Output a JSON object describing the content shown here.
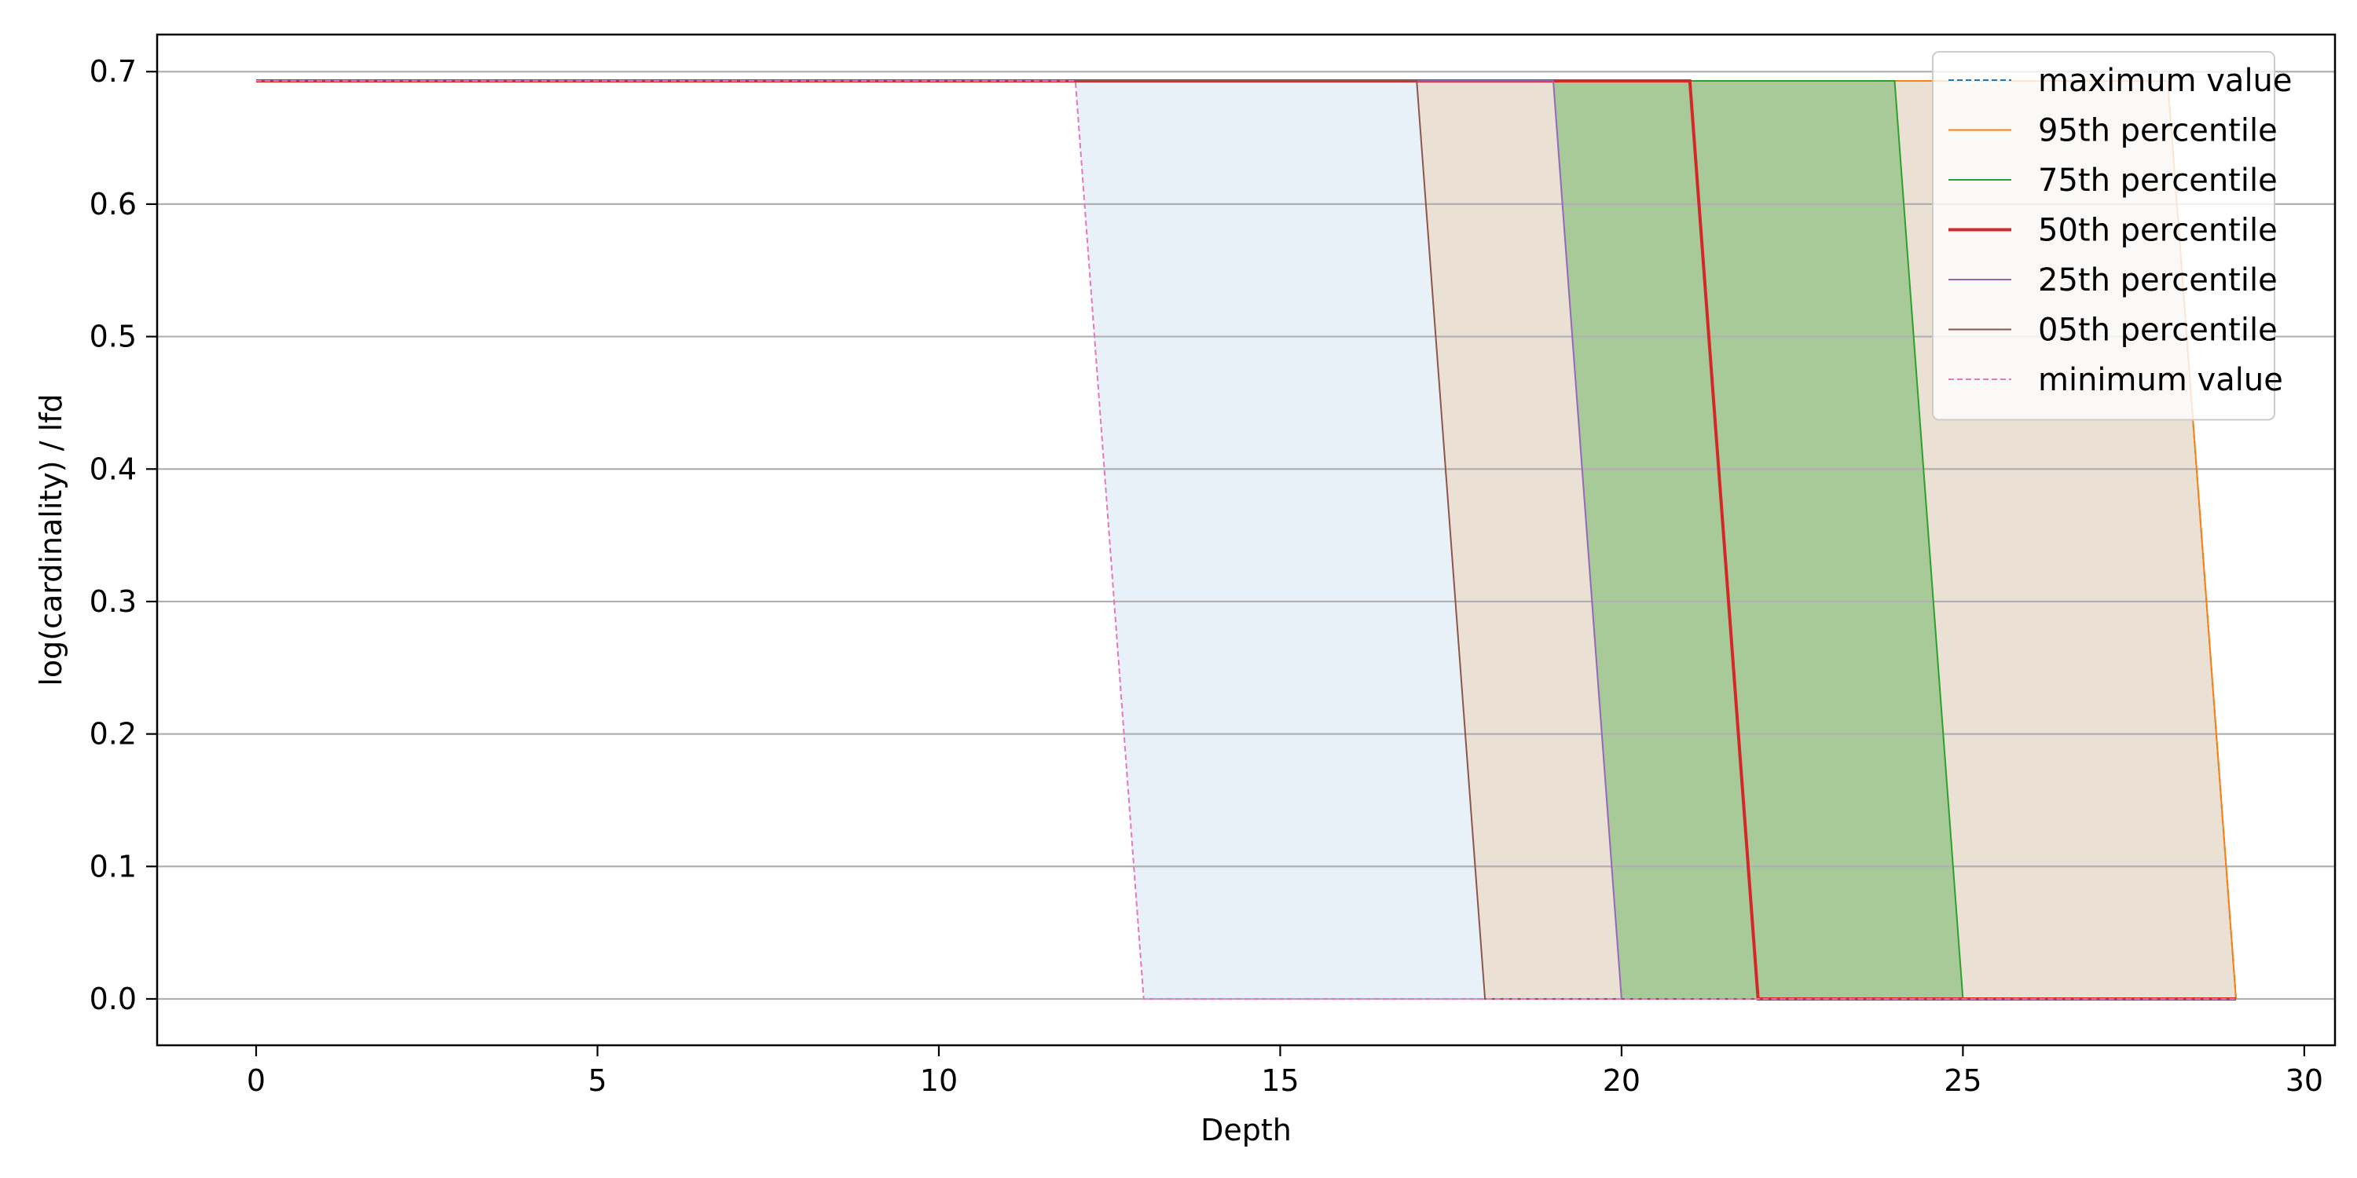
{
  "chart_data": {
    "type": "line",
    "title": "",
    "xlabel": "Depth",
    "ylabel": "log(cardinality) / lfd",
    "xlim": [
      -1.45,
      30.45
    ],
    "ylim": [
      -0.035,
      0.728
    ],
    "xticks": [
      0,
      5,
      10,
      15,
      20,
      25,
      30
    ],
    "yticks": [
      0.0,
      0.1,
      0.2,
      0.3,
      0.4,
      0.5,
      0.6,
      0.7
    ],
    "grid": "y",
    "legend_position": "top-right",
    "series": [
      {
        "name": "maximum value",
        "color": "#1f77b4",
        "dashed": true,
        "x": [
          0,
          28,
          29
        ],
        "y": [
          0.693,
          0.693,
          0.0
        ]
      },
      {
        "name": "95th percentile",
        "color": "#ff7f0e",
        "dashed": false,
        "x": [
          0,
          28,
          29
        ],
        "y": [
          0.693,
          0.693,
          0.0
        ]
      },
      {
        "name": "75th percentile",
        "color": "#2ca02c",
        "dashed": false,
        "x": [
          0,
          24,
          25,
          29
        ],
        "y": [
          0.693,
          0.693,
          0.0,
          0.0
        ]
      },
      {
        "name": "50th percentile",
        "color": "#d62728",
        "dashed": false,
        "x": [
          0,
          21,
          22,
          29
        ],
        "y": [
          0.693,
          0.693,
          0.0,
          0.0
        ]
      },
      {
        "name": "25th percentile",
        "color": "#9467bd",
        "dashed": false,
        "x": [
          0,
          19,
          20,
          29
        ],
        "y": [
          0.693,
          0.693,
          0.0,
          0.0
        ]
      },
      {
        "name": "05th percentile",
        "color": "#8c564b",
        "dashed": false,
        "x": [
          0,
          17,
          18,
          29
        ],
        "y": [
          0.693,
          0.693,
          0.0,
          0.0
        ]
      },
      {
        "name": "minimum value",
        "color": "#e377c2",
        "dashed": true,
        "x": [
          0,
          12,
          13,
          29
        ],
        "y": [
          0.693,
          0.693,
          0.0,
          0.0
        ]
      }
    ],
    "fills": [
      {
        "between": [
          "minimum value",
          "maximum value"
        ],
        "color": "#1f77b4",
        "opacity": 0.1
      },
      {
        "between": [
          "05th percentile",
          "95th percentile"
        ],
        "color": "#ff7f0e",
        "opacity": 0.15
      },
      {
        "between": [
          "25th percentile",
          "75th percentile"
        ],
        "color": "#2ca02c",
        "opacity": 0.35
      }
    ]
  }
}
